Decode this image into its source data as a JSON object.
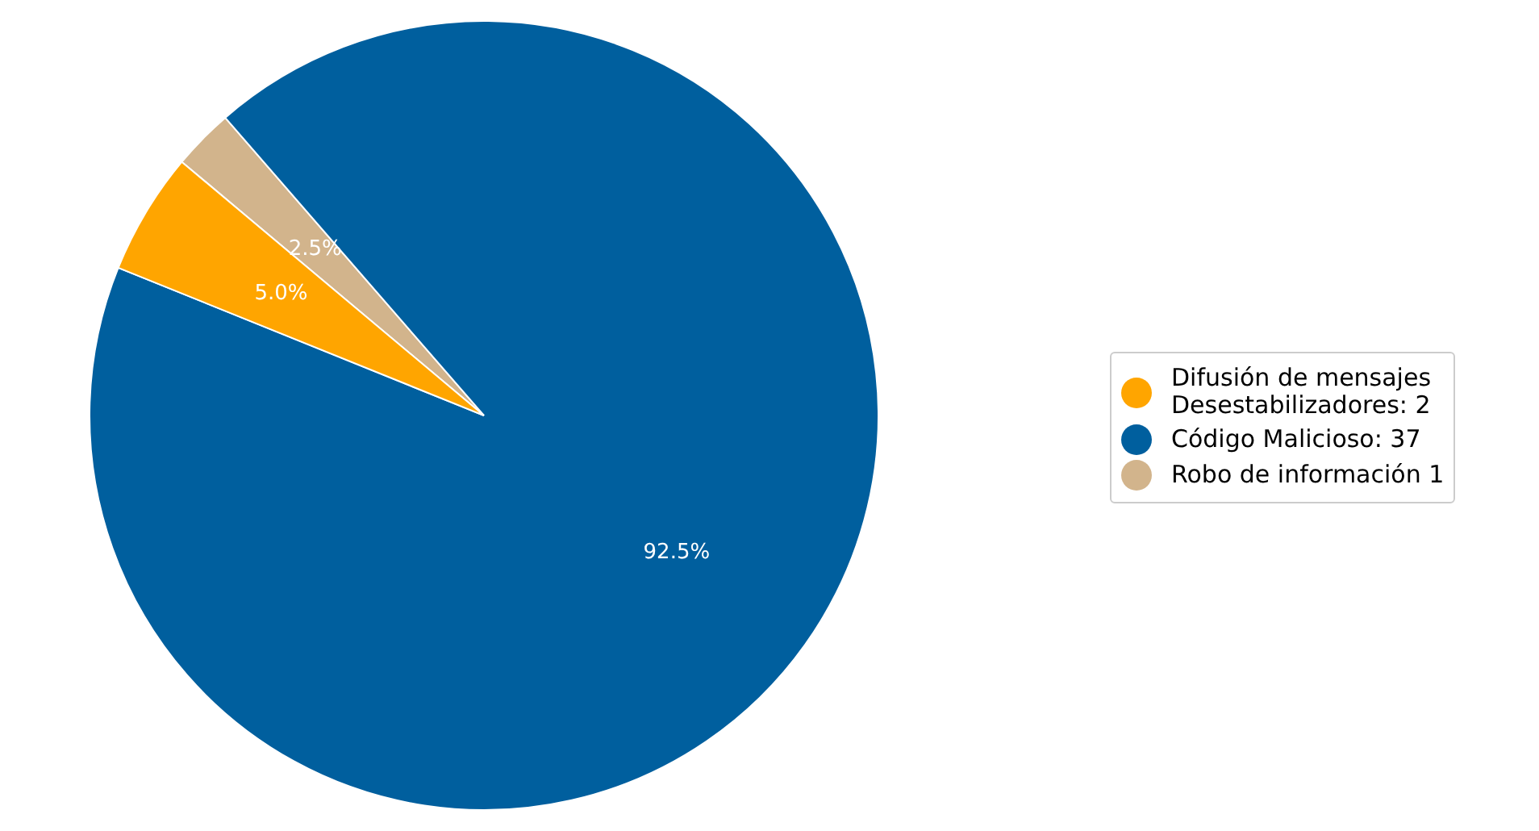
{
  "chart_data": {
    "type": "pie",
    "categories": [
      "Difusión de mensajes\nDesestabilizadores: 2",
      "Código Malicioso: 37",
      "Robo de información 1"
    ],
    "values": [
      5.0,
      92.5,
      2.5
    ],
    "colors": [
      "#ffa500",
      "#005f9e",
      "#d2b48c"
    ],
    "value_labels": [
      "5.0%",
      "92.5%",
      "2.5%"
    ],
    "legend": "right"
  }
}
